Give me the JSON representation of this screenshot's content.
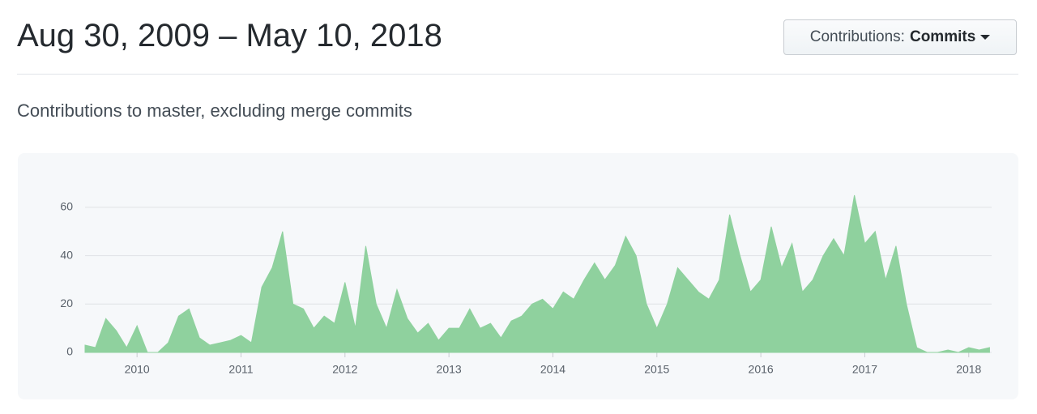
{
  "header": {
    "title": "Aug 30, 2009 – May 10, 2018",
    "button_label": "Contributions:",
    "button_value": "Commits"
  },
  "subtitle": "Contributions to master, excluding merge commits",
  "chart_data": {
    "type": "area",
    "x": [
      2009.5,
      2009.6,
      2009.7,
      2009.8,
      2009.9,
      2010.0,
      2010.1,
      2010.2,
      2010.3,
      2010.4,
      2010.5,
      2010.6,
      2010.7,
      2010.8,
      2010.9,
      2011.0,
      2011.1,
      2011.2,
      2011.3,
      2011.4,
      2011.5,
      2011.6,
      2011.7,
      2011.8,
      2011.9,
      2012.0,
      2012.1,
      2012.2,
      2012.3,
      2012.4,
      2012.5,
      2012.6,
      2012.7,
      2012.8,
      2012.9,
      2013.0,
      2013.1,
      2013.2,
      2013.3,
      2013.4,
      2013.5,
      2013.6,
      2013.7,
      2013.8,
      2013.9,
      2014.0,
      2014.1,
      2014.2,
      2014.3,
      2014.4,
      2014.5,
      2014.6,
      2014.7,
      2014.8,
      2014.9,
      2015.0,
      2015.1,
      2015.2,
      2015.3,
      2015.4,
      2015.5,
      2015.6,
      2015.7,
      2015.8,
      2015.9,
      2016.0,
      2016.1,
      2016.2,
      2016.3,
      2016.4,
      2016.5,
      2016.6,
      2016.7,
      2016.8,
      2016.9,
      2017.0,
      2017.1,
      2017.2,
      2017.3,
      2017.4,
      2017.5,
      2017.6,
      2017.7,
      2017.8,
      2017.9,
      2018.0,
      2018.1,
      2018.2
    ],
    "series": [
      {
        "name": "Commits",
        "color": "#8fd19e",
        "values": [
          3,
          2,
          14,
          9,
          2,
          11,
          0,
          0,
          4,
          15,
          18,
          6,
          3,
          4,
          5,
          7,
          4,
          27,
          35,
          50,
          20,
          18,
          10,
          15,
          12,
          29,
          10,
          44,
          20,
          10,
          26,
          14,
          8,
          12,
          5,
          10,
          10,
          18,
          10,
          12,
          6,
          13,
          15,
          20,
          22,
          18,
          25,
          22,
          30,
          37,
          30,
          36,
          48,
          40,
          20,
          10,
          20,
          35,
          30,
          25,
          22,
          30,
          57,
          40,
          25,
          30,
          52,
          35,
          45,
          25,
          30,
          40,
          47,
          40,
          65,
          45,
          50,
          30,
          44,
          20,
          2,
          0,
          0,
          1,
          0,
          2,
          1,
          2
        ]
      }
    ],
    "xlim": [
      2009.5,
      2018.22
    ],
    "xticks": [
      2010,
      2011,
      2012,
      2013,
      2014,
      2015,
      2016,
      2017,
      2018
    ],
    "ylim": [
      0,
      65
    ],
    "yticks": [
      0,
      20,
      40,
      60
    ],
    "grid": true
  }
}
